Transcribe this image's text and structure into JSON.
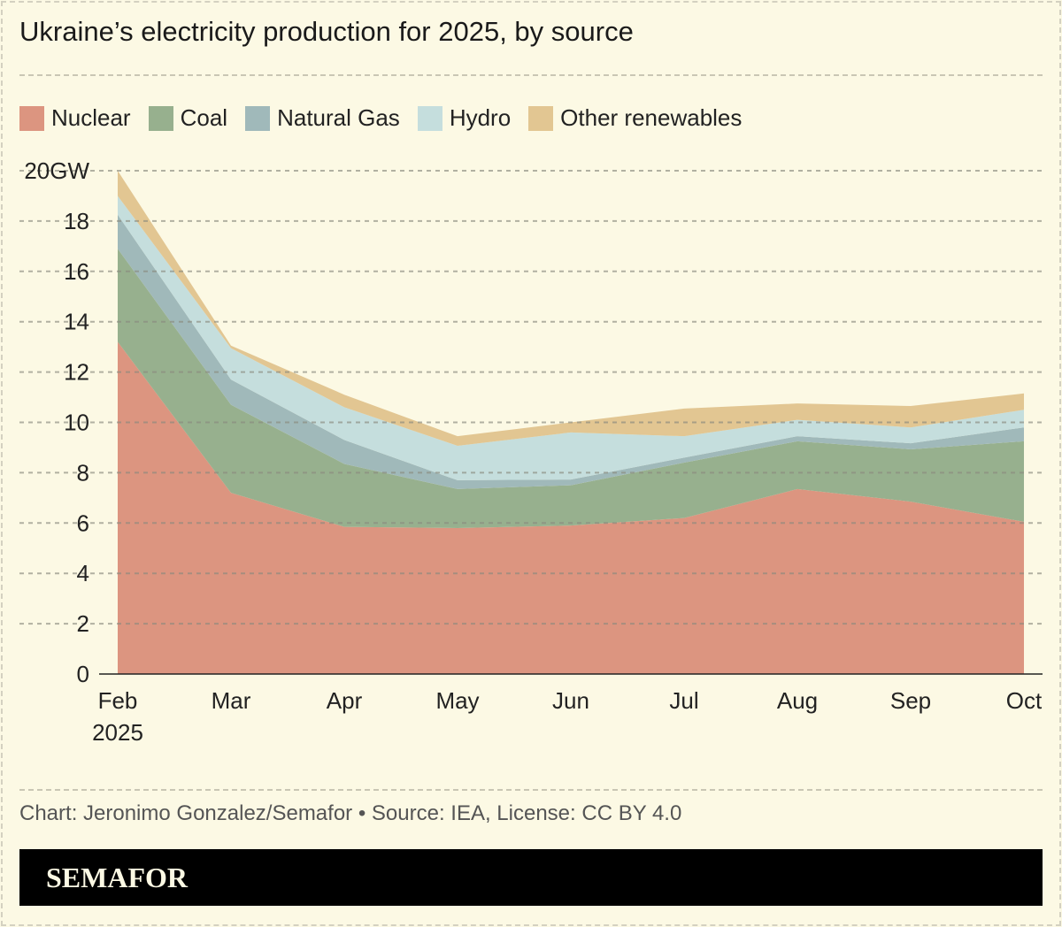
{
  "title": "Ukraine’s electricity production for 2025, by source",
  "source": "Chart: Jeronimo Gonzalez/Semafor • Source: IEA, License: CC BY 4.0",
  "brand": "SEMAFOR",
  "chart_data": {
    "type": "area",
    "stacked": true,
    "categories": [
      "Feb",
      "Mar",
      "Apr",
      "May",
      "Jun",
      "Jul",
      "Aug",
      "Sep",
      "Oct"
    ],
    "x_sublabel": "2025",
    "ylim": [
      0,
      20
    ],
    "yticks": [
      "0",
      "2",
      "4",
      "6",
      "8",
      "10",
      "12",
      "14",
      "16",
      "18",
      "20GW"
    ],
    "grid": true,
    "legend_position": "top",
    "series": [
      {
        "name": "Nuclear",
        "color": "#dc9580",
        "values": [
          13.2,
          7.2,
          5.85,
          5.8,
          5.9,
          6.2,
          7.35,
          6.85,
          6.05
        ]
      },
      {
        "name": "Coal",
        "color": "#97b08e",
        "values": [
          3.7,
          3.5,
          2.5,
          1.55,
          1.6,
          2.2,
          1.9,
          2.08,
          3.2
        ]
      },
      {
        "name": "Natural Gas",
        "color": "#a0b9ba",
        "values": [
          1.35,
          1.0,
          0.95,
          0.35,
          0.23,
          0.2,
          0.2,
          0.24,
          0.55
        ]
      },
      {
        "name": "Hydro",
        "color": "#c5dedd",
        "values": [
          0.75,
          1.25,
          1.3,
          1.37,
          1.87,
          0.85,
          0.65,
          0.63,
          0.7
        ]
      },
      {
        "name": "Other renewables",
        "color": "#e2c692",
        "values": [
          1.0,
          0.1,
          0.5,
          0.38,
          0.4,
          1.1,
          0.65,
          0.85,
          0.65
        ]
      }
    ]
  }
}
